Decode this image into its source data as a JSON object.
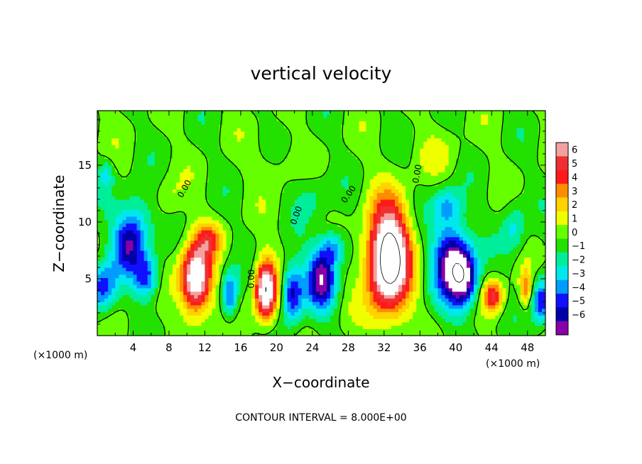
{
  "chart_data": {
    "type": "heatmap",
    "title": "vertical velocity",
    "xlabel": "X−coordinate",
    "ylabel": "Z−coordinate",
    "x_unit_left": "(×1000 m)",
    "x_unit_right": "(×1000 m)",
    "footer": "CONTOUR INTERVAL = 8.000E+00",
    "xlim": [
      0,
      50
    ],
    "ylim": [
      0,
      19.8
    ],
    "x_ticks": [
      4,
      8,
      12,
      16,
      20,
      24,
      28,
      32,
      36,
      40,
      44,
      48
    ],
    "x_tick_labels": [
      "4",
      "8",
      "12",
      "16",
      "20",
      "24",
      "28",
      "32",
      "36",
      "40",
      "44",
      "48"
    ],
    "y_ticks": [
      5,
      10,
      15
    ],
    "y_tick_labels": [
      "5",
      "10",
      "15"
    ],
    "zero_contour_label": "0.00",
    "colorbar": {
      "min": -6,
      "max": 6,
      "levels": [
        6,
        5,
        4,
        3,
        2,
        1,
        0,
        -1,
        -2,
        -3,
        -4,
        -5,
        -6
      ],
      "labels": [
        "6",
        "5",
        "4",
        "3",
        "2",
        "1",
        "0",
        "−1",
        "−2",
        "−3",
        "−4",
        "−5",
        "−6"
      ],
      "colors": [
        "#f4a0a0",
        "#ee3030",
        "#ff1a1a",
        "#ff8c00",
        "#ffd200",
        "#f0ff00",
        "#66ff00",
        "#22e000",
        "#00ee9a",
        "#00e8ee",
        "#009cff",
        "#1010ff",
        "#0000a8",
        "#8800aa"
      ]
    },
    "features": [
      {
        "x": 0.6,
        "z": 4.3,
        "sx": 1.5,
        "sz": 2.2,
        "value": -4
      },
      {
        "x": 3.5,
        "z": 8.0,
        "sx": 1.8,
        "sz": 2.5,
        "value": -4.5
      },
      {
        "x": 5.5,
        "z": 5.2,
        "sx": 1.4,
        "sz": 2.0,
        "value": -3.8
      },
      {
        "x": 4.5,
        "z": 10.5,
        "sx": 2.0,
        "sz": 2.5,
        "value": -2
      },
      {
        "x": 11.0,
        "z": 5.0,
        "sx": 1.7,
        "sz": 3.0,
        "value": 8
      },
      {
        "x": 12.5,
        "z": 8.5,
        "sx": 1.5,
        "sz": 1.5,
        "value": 3
      },
      {
        "x": 14.8,
        "z": 3.6,
        "sx": 0.9,
        "sz": 2.0,
        "value": -4
      },
      {
        "x": 18.8,
        "z": 4.0,
        "sx": 1.2,
        "sz": 2.6,
        "value": 8
      },
      {
        "x": 21.8,
        "z": 3.8,
        "sx": 1.2,
        "sz": 2.5,
        "value": -4.8
      },
      {
        "x": 25.0,
        "z": 5.0,
        "sx": 1.6,
        "sz": 2.6,
        "value": -5.5
      },
      {
        "x": 26.3,
        "z": 7.8,
        "sx": 1.5,
        "sz": 1.6,
        "value": -3
      },
      {
        "x": 32.5,
        "z": 6.8,
        "sx": 2.3,
        "sz": 4.6,
        "value": 10
      },
      {
        "x": 39.5,
        "z": 6.5,
        "sx": 2.0,
        "sz": 3.5,
        "value": -6
      },
      {
        "x": 41.0,
        "z": 5.0,
        "sx": 1.5,
        "sz": 2.5,
        "value": -5
      },
      {
        "x": 39.0,
        "z": 11.5,
        "sx": 1.6,
        "sz": 1.6,
        "value": -2.5
      },
      {
        "x": 44.2,
        "z": 3.5,
        "sx": 1.1,
        "sz": 1.4,
        "value": 4.5
      },
      {
        "x": 47.8,
        "z": 4.2,
        "sx": 0.7,
        "sz": 1.6,
        "value": 3
      },
      {
        "x": 49.5,
        "z": 3.0,
        "sx": 1.0,
        "sz": 2.0,
        "value": -4.5
      },
      {
        "x": 46.5,
        "z": 9.5,
        "sx": 1.3,
        "sz": 2.4,
        "value": -2
      },
      {
        "x": 1.0,
        "z": 14.2,
        "sx": 0.8,
        "sz": 1.2,
        "value": -2
      },
      {
        "x": 38.0,
        "z": 16.0,
        "sx": 2.5,
        "sz": 2.0,
        "value": 0.8
      },
      {
        "x": 20.0,
        "z": 15.0,
        "sx": 2.5,
        "sz": 2.0,
        "value": 0.7
      },
      {
        "x": 8.0,
        "z": 12.0,
        "sx": 1.5,
        "sz": 2.0,
        "value": 1.0
      },
      {
        "x": 24.0,
        "z": 12.5,
        "sx": 2.0,
        "sz": 2.0,
        "value": -1.2
      }
    ],
    "grid": false,
    "legend_placement": "right"
  }
}
